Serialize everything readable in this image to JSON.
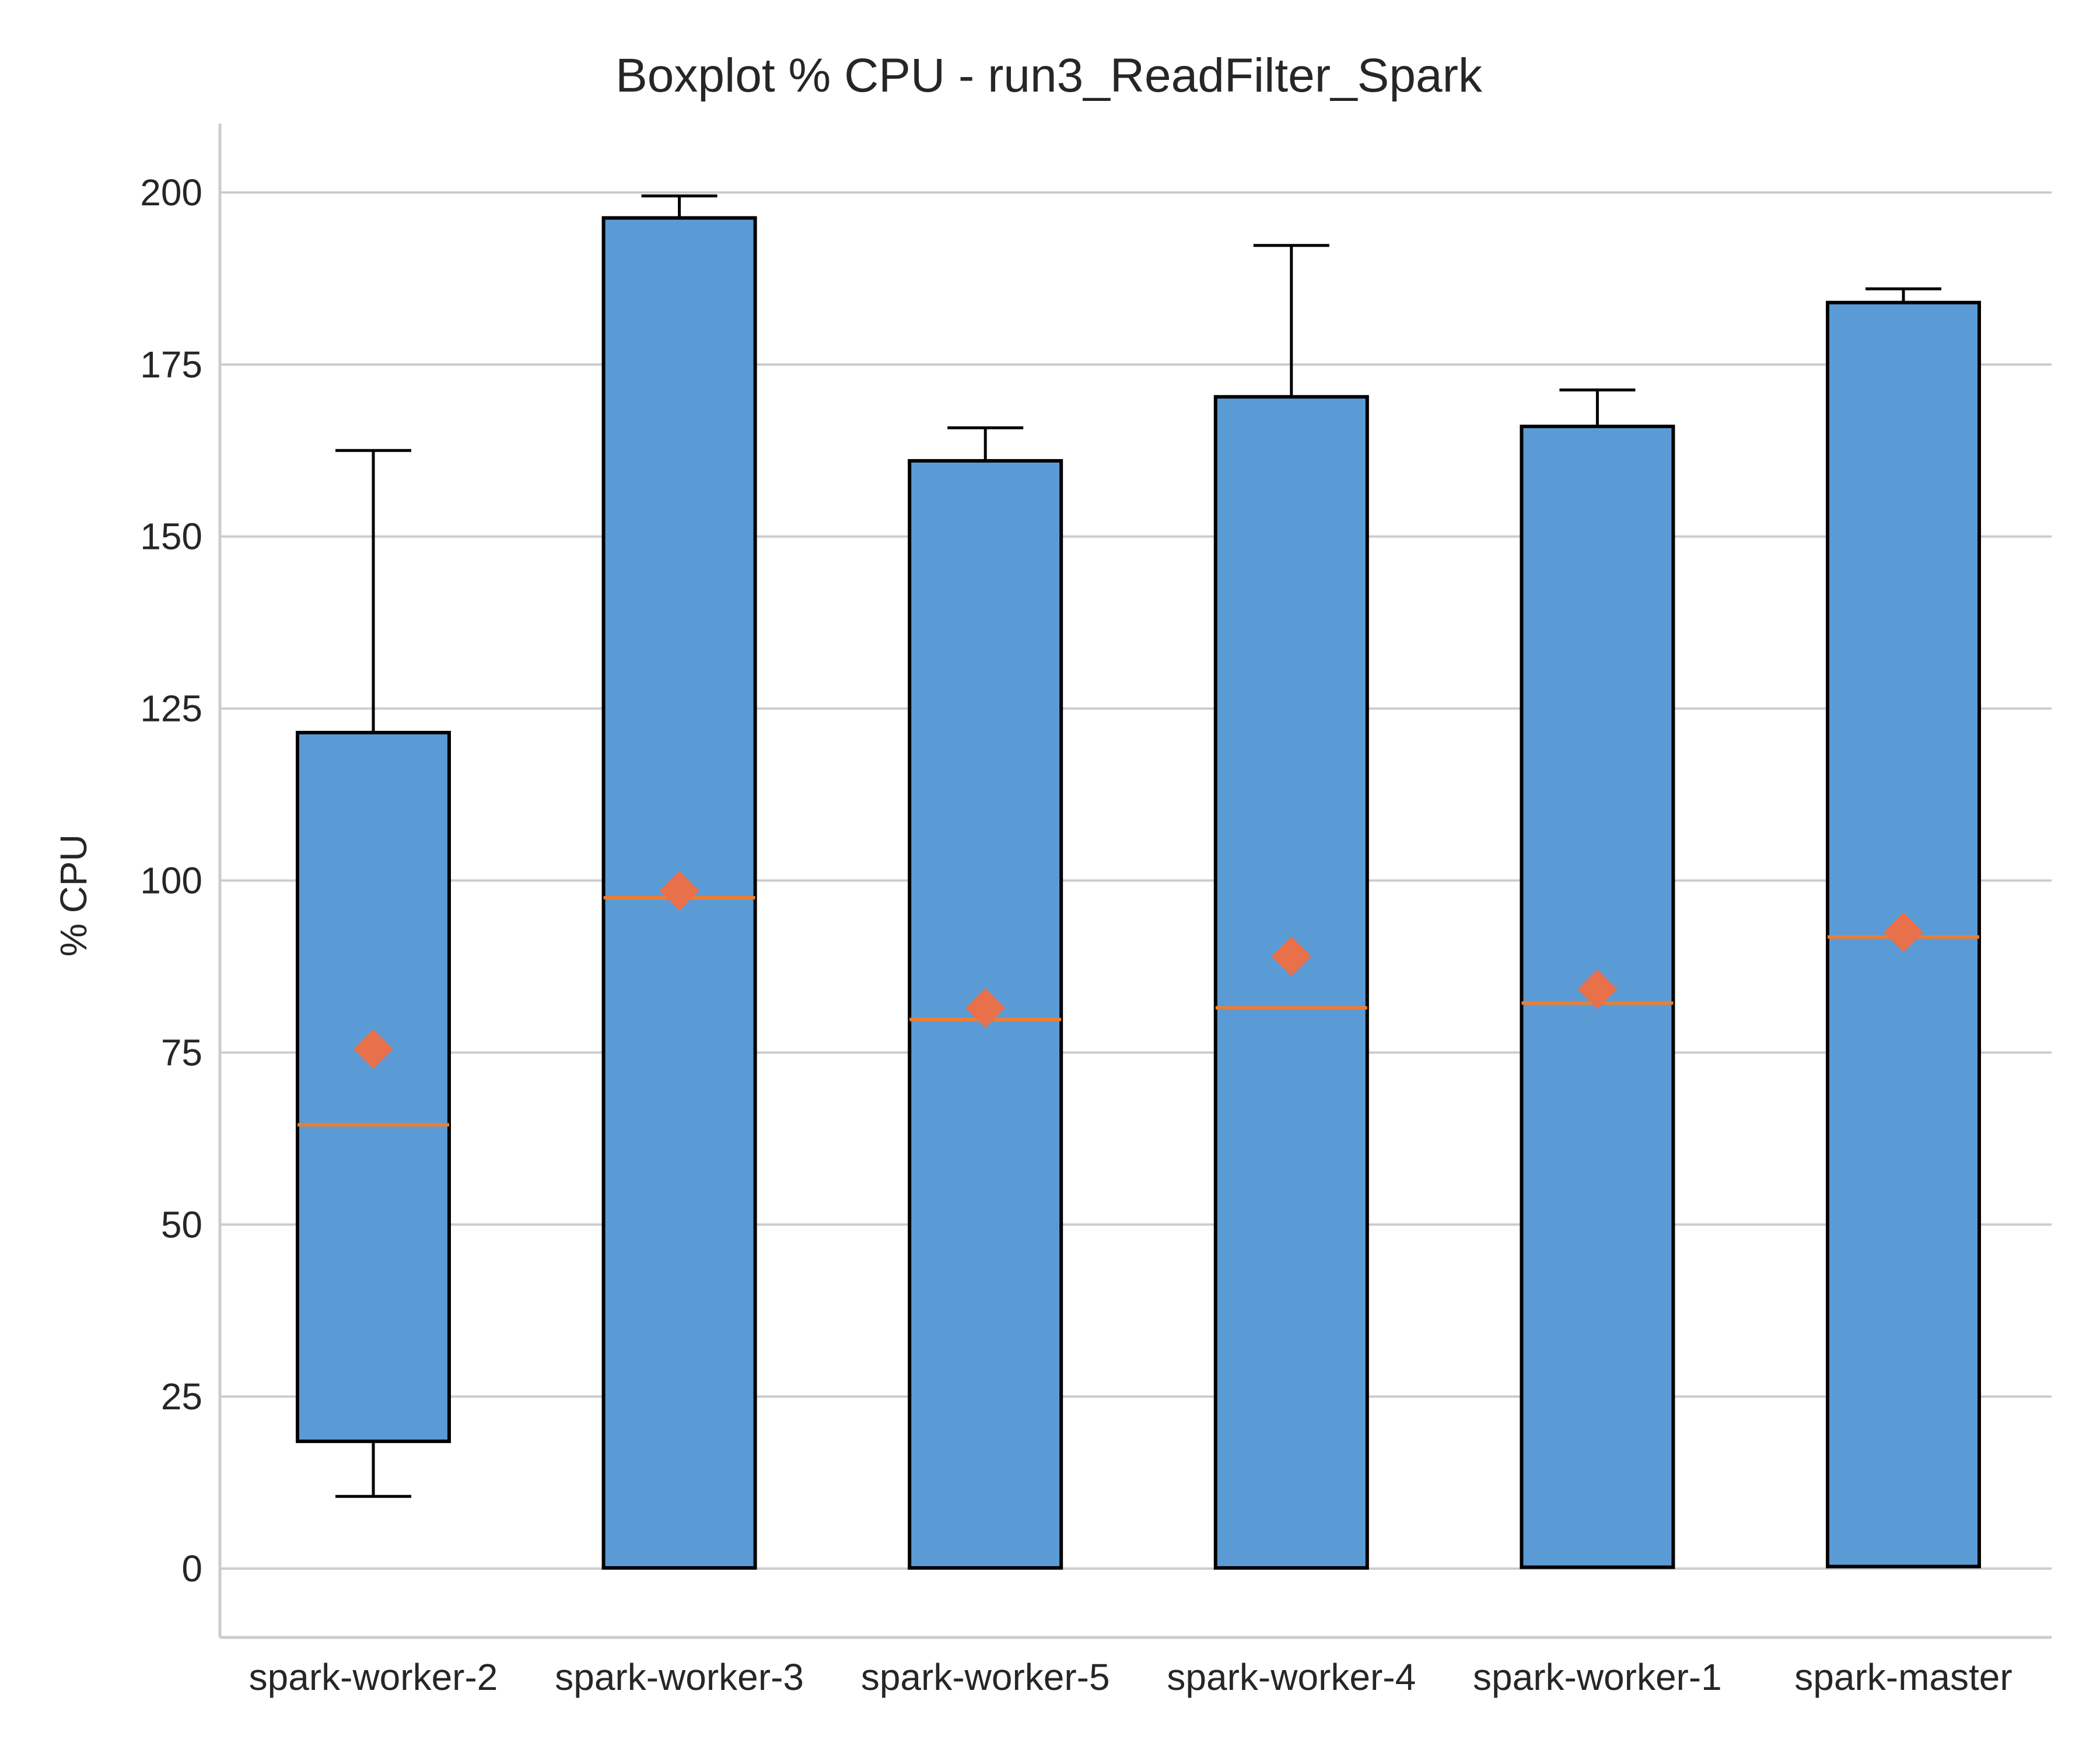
{
  "chart_data": {
    "type": "boxplot",
    "title": "Boxplot % CPU - run3_ReadFilter_Spark",
    "xlabel": "",
    "ylabel": "% CPU",
    "ylim": [
      -10,
      210
    ],
    "yticks": [
      0,
      25,
      50,
      75,
      100,
      125,
      150,
      175,
      200
    ],
    "grid": "horizontal",
    "colors": {
      "box": "#5b9bd5",
      "edge": "#000000",
      "median": "#ed7d31",
      "mean": "#e8704a",
      "grid": "#cccccc",
      "spine": "#cccccc"
    },
    "categories": [
      "spark-worker-2",
      "spark-worker-3",
      "spark-worker-5",
      "spark-worker-4",
      "spark-worker-1",
      "spark-master"
    ],
    "boxes": [
      {
        "whisker_low": 10.5,
        "q1": 18.5,
        "median": 64.5,
        "q3": 121.5,
        "whisker_high": 162.5,
        "mean": 75.5
      },
      {
        "whisker_low": 0.1,
        "q1": 0.1,
        "median": 97.5,
        "q3": 196.3,
        "whisker_high": 199.5,
        "mean": 98.5
      },
      {
        "whisker_low": 0.1,
        "q1": 0.1,
        "median": 79.8,
        "q3": 161.0,
        "whisker_high": 165.8,
        "mean": 81.5
      },
      {
        "whisker_low": 0.1,
        "q1": 0.1,
        "median": 81.5,
        "q3": 170.3,
        "whisker_high": 192.3,
        "mean": 89.0
      },
      {
        "whisker_low": 0.2,
        "q1": 0.2,
        "median": 82.2,
        "q3": 166.0,
        "whisker_high": 171.3,
        "mean": 84.2
      },
      {
        "whisker_low": 0.3,
        "q1": 0.3,
        "median": 91.8,
        "q3": 184.0,
        "whisker_high": 186.0,
        "mean": 92.5
      }
    ]
  }
}
